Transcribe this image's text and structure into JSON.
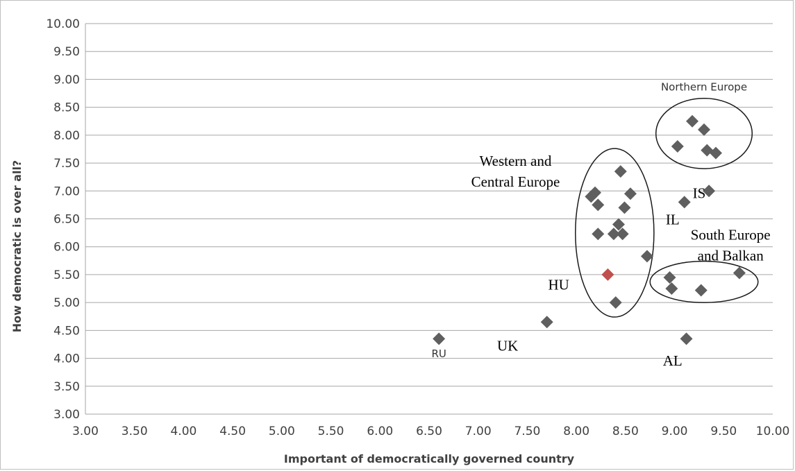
{
  "chart_data": {
    "type": "scatter",
    "title": "",
    "xlabel": "Important of democratically  governed country",
    "ylabel": "How democratic is over all?",
    "xlim": [
      3.0,
      10.0
    ],
    "ylim": [
      3.0,
      10.0
    ],
    "x_tick_step": 0.5,
    "y_tick_step": 0.5,
    "x_ticks": [
      "3.00",
      "3.50",
      "4.00",
      "4.50",
      "5.00",
      "5.50",
      "6.00",
      "6.50",
      "7.00",
      "7.50",
      "8.00",
      "8.50",
      "9.00",
      "9.50",
      "10.00"
    ],
    "y_ticks": [
      "3.00",
      "3.50",
      "4.00",
      "4.50",
      "5.00",
      "5.50",
      "6.00",
      "6.50",
      "7.00",
      "7.50",
      "8.00",
      "8.50",
      "9.00",
      "9.50",
      "10.00"
    ],
    "grid": "horizontal",
    "marker": "diamond",
    "colors": {
      "point": "#5f5f5f",
      "highlight": "#c0504d",
      "grid": "#a6a6a6"
    },
    "points": [
      {
        "x": 6.6,
        "y": 4.35
      },
      {
        "x": 7.7,
        "y": 4.65
      },
      {
        "x": 8.32,
        "y": 5.5,
        "highlight": true
      },
      {
        "x": 8.4,
        "y": 5.0
      },
      {
        "x": 8.72,
        "y": 5.83
      },
      {
        "x": 8.22,
        "y": 6.23
      },
      {
        "x": 8.38,
        "y": 6.23
      },
      {
        "x": 8.47,
        "y": 6.23
      },
      {
        "x": 8.43,
        "y": 6.4
      },
      {
        "x": 8.49,
        "y": 6.7
      },
      {
        "x": 8.22,
        "y": 6.75
      },
      {
        "x": 8.15,
        "y": 6.9
      },
      {
        "x": 8.19,
        "y": 6.97
      },
      {
        "x": 8.55,
        "y": 6.95
      },
      {
        "x": 8.45,
        "y": 7.35
      },
      {
        "x": 9.1,
        "y": 6.8
      },
      {
        "x": 9.35,
        "y": 7.0
      },
      {
        "x": 9.03,
        "y": 7.8
      },
      {
        "x": 9.18,
        "y": 8.25
      },
      {
        "x": 9.3,
        "y": 8.1
      },
      {
        "x": 9.33,
        "y": 7.73
      },
      {
        "x": 9.42,
        "y": 7.68
      },
      {
        "x": 8.95,
        "y": 5.45
      },
      {
        "x": 8.97,
        "y": 5.25
      },
      {
        "x": 9.27,
        "y": 5.22
      },
      {
        "x": 9.66,
        "y": 5.53
      },
      {
        "x": 9.12,
        "y": 4.35
      }
    ],
    "groups": [
      {
        "label_lines": [
          "Northern Europe"
        ],
        "style": "sans",
        "label_x": 9.3,
        "label_y": 8.8,
        "ellipse": {
          "cx": 9.3,
          "cy": 8.03,
          "rx": 0.49,
          "ry": 0.63
        }
      },
      {
        "label_lines": [
          "Western and",
          "Central Europe"
        ],
        "style": "serif",
        "label_x": 7.38,
        "label_y": 7.45,
        "ellipse": {
          "cx": 8.39,
          "cy": 6.25,
          "rx": 0.4,
          "ry": 1.51
        }
      },
      {
        "label_lines": [
          "South Europe",
          "and Balkan"
        ],
        "style": "serif",
        "label_x": 9.57,
        "label_y": 6.13,
        "ellipse": {
          "cx": 9.3,
          "cy": 5.37,
          "rx": 0.55,
          "ry": 0.37
        }
      }
    ],
    "annotations": [
      {
        "text": "RU",
        "x": 6.6,
        "y": 4.02,
        "style": "sans"
      },
      {
        "text": "UK",
        "x": 7.3,
        "y": 4.14,
        "style": "serif"
      },
      {
        "text": "HU",
        "x": 7.82,
        "y": 5.23,
        "style": "serif"
      },
      {
        "text": "IL",
        "x": 8.98,
        "y": 6.4,
        "style": "serif"
      },
      {
        "text": "IS",
        "x": 9.25,
        "y": 6.87,
        "style": "serif"
      },
      {
        "text": "AL",
        "x": 8.98,
        "y": 3.87,
        "style": "serif"
      }
    ]
  }
}
